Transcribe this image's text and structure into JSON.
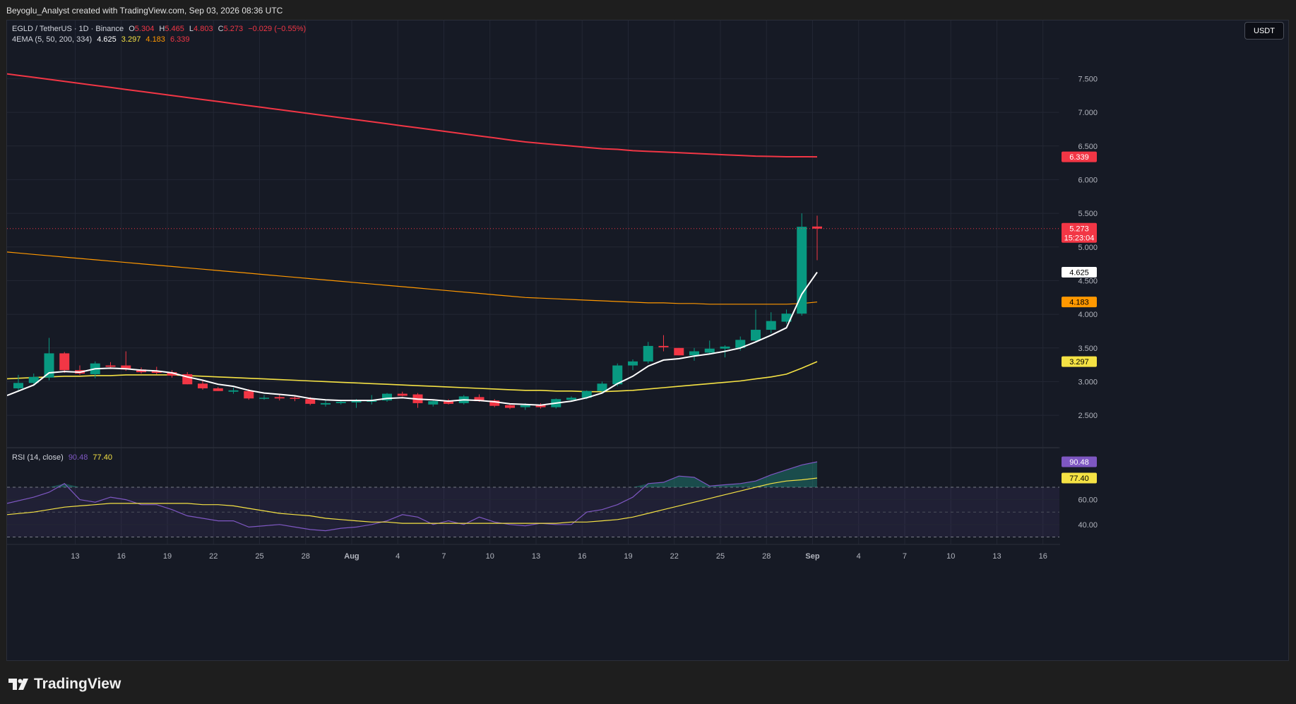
{
  "header": {
    "credit": "Beyoglu_Analyst created with TradingView.com, Sep 03, 2026 08:36 UTC"
  },
  "legend": {
    "symbol": "EGLD / TetherUS · 1D · Binance",
    "o_label": "O",
    "o_value": "5.304",
    "h_label": "H",
    "h_value": "5.465",
    "l_label": "L",
    "l_value": "4.803",
    "c_label": "C",
    "c_value": "5.273",
    "change": "−0.029 (−0.55%)",
    "ema_label": "4EMA (5, 50, 200, 334)",
    "ema5": "4.625",
    "ema50": "3.297",
    "ema200": "4.183",
    "ema334": "6.339",
    "rsi_label": "RSI (14, close)",
    "rsi_value": "90.48",
    "rsi_ma": "77.40"
  },
  "currency_button": "USDT",
  "branding": {
    "logo_text": "TradingView",
    "logo_icon": "tradingview-logo-icon"
  },
  "colors": {
    "up": "#089981",
    "down": "#f23645",
    "ema5": "#ffffff",
    "ema50": "#f5e244",
    "ema200": "#ff9800",
    "ema334": "#f23645",
    "rsi": "#7e57c2",
    "rsi_ma": "#f5e244"
  },
  "chart_data": [
    {
      "type": "candlestick",
      "title": "EGLD / TetherUS · 1D · Binance",
      "x_tick_labels": [
        "13",
        "16",
        "19",
        "22",
        "25",
        "28",
        "Aug",
        "4",
        "7",
        "10",
        "13",
        "16",
        "19",
        "22",
        "25",
        "28",
        "Sep",
        "4",
        "7",
        "10",
        "13",
        "16"
      ],
      "y_tick_labels": [
        "2.500",
        "3.000",
        "3.500",
        "4.000",
        "4.500",
        "5.000",
        "5.500",
        "6.000",
        "6.500",
        "7.000",
        "7.500"
      ],
      "ylim": [
        2.05,
        8.05
      ],
      "price_labels": {
        "ema334": "6.339",
        "last": "5.273",
        "countdown": "15:23:04",
        "ema5": "4.625",
        "ema200": "4.183",
        "ema50": "3.297"
      },
      "candles": [
        [
          2.9,
          3.1,
          2.85,
          2.98
        ],
        [
          2.98,
          3.12,
          2.95,
          3.07
        ],
        [
          3.06,
          3.65,
          3.02,
          3.42
        ],
        [
          3.42,
          3.44,
          3.13,
          3.17
        ],
        [
          3.17,
          3.24,
          3.1,
          3.12
        ],
        [
          3.11,
          3.3,
          3.05,
          3.27
        ],
        [
          3.24,
          3.29,
          3.2,
          3.22
        ],
        [
          3.24,
          3.45,
          3.16,
          3.18
        ],
        [
          3.18,
          3.21,
          3.12,
          3.14
        ],
        [
          3.16,
          3.22,
          3.11,
          3.13
        ],
        [
          3.14,
          3.17,
          3.06,
          3.09
        ],
        [
          3.11,
          3.14,
          2.96,
          2.96
        ],
        [
          2.97,
          3.02,
          2.88,
          2.9
        ],
        [
          2.9,
          2.92,
          2.86,
          2.86
        ],
        [
          2.85,
          2.91,
          2.82,
          2.87
        ],
        [
          2.86,
          2.89,
          2.73,
          2.75
        ],
        [
          2.75,
          2.8,
          2.73,
          2.76
        ],
        [
          2.77,
          2.81,
          2.72,
          2.75
        ],
        [
          2.76,
          2.79,
          2.71,
          2.75
        ],
        [
          2.74,
          2.77,
          2.65,
          2.67
        ],
        [
          2.66,
          2.72,
          2.63,
          2.68
        ],
        [
          2.68,
          2.72,
          2.66,
          2.7
        ],
        [
          2.69,
          2.74,
          2.61,
          2.72
        ],
        [
          2.7,
          2.8,
          2.66,
          2.72
        ],
        [
          2.72,
          2.83,
          2.7,
          2.82
        ],
        [
          2.82,
          2.85,
          2.78,
          2.79
        ],
        [
          2.81,
          2.83,
          2.61,
          2.68
        ],
        [
          2.66,
          2.73,
          2.63,
          2.71
        ],
        [
          2.71,
          2.74,
          2.66,
          2.67
        ],
        [
          2.68,
          2.8,
          2.66,
          2.78
        ],
        [
          2.77,
          2.81,
          2.7,
          2.71
        ],
        [
          2.72,
          2.74,
          2.62,
          2.64
        ],
        [
          2.65,
          2.67,
          2.59,
          2.61
        ],
        [
          2.62,
          2.68,
          2.58,
          2.65
        ],
        [
          2.65,
          2.68,
          2.6,
          2.62
        ],
        [
          2.62,
          2.75,
          2.6,
          2.74
        ],
        [
          2.73,
          2.78,
          2.71,
          2.76
        ],
        [
          2.76,
          2.87,
          2.74,
          2.86
        ],
        [
          2.86,
          3.0,
          2.84,
          2.97
        ],
        [
          2.96,
          3.27,
          2.93,
          3.24
        ],
        [
          3.24,
          3.33,
          3.17,
          3.3
        ],
        [
          3.3,
          3.59,
          3.27,
          3.53
        ],
        [
          3.53,
          3.69,
          3.45,
          3.51
        ],
        [
          3.5,
          3.5,
          3.39,
          3.39
        ],
        [
          3.39,
          3.5,
          3.31,
          3.45
        ],
        [
          3.43,
          3.61,
          3.41,
          3.49
        ],
        [
          3.49,
          3.54,
          3.36,
          3.52
        ],
        [
          3.5,
          3.67,
          3.46,
          3.62
        ],
        [
          3.61,
          4.07,
          3.58,
          3.77
        ],
        [
          3.77,
          4.03,
          3.72,
          3.9
        ],
        [
          3.89,
          4.07,
          3.86,
          4.01
        ],
        [
          4.01,
          5.5,
          3.98,
          5.3
        ],
        [
          5.304,
          5.465,
          4.803,
          5.273
        ]
      ],
      "ema5": [
        2.86,
        2.95,
        3.13,
        3.15,
        3.14,
        3.19,
        3.2,
        3.19,
        3.17,
        3.16,
        3.13,
        3.07,
        3.02,
        2.96,
        2.93,
        2.87,
        2.83,
        2.81,
        2.79,
        2.75,
        2.73,
        2.72,
        2.72,
        2.72,
        2.75,
        2.76,
        2.74,
        2.73,
        2.71,
        2.73,
        2.72,
        2.7,
        2.67,
        2.66,
        2.65,
        2.68,
        2.71,
        2.76,
        2.83,
        2.97,
        3.08,
        3.23,
        3.32,
        3.34,
        3.38,
        3.41,
        3.45,
        3.5,
        3.59,
        3.69,
        3.8,
        4.3,
        4.625
      ],
      "ema50": [
        3.05,
        3.06,
        3.07,
        3.08,
        3.08,
        3.09,
        3.09,
        3.1,
        3.1,
        3.1,
        3.1,
        3.09,
        3.08,
        3.07,
        3.06,
        3.05,
        3.04,
        3.03,
        3.02,
        3.01,
        3.0,
        2.99,
        2.98,
        2.97,
        2.96,
        2.95,
        2.94,
        2.93,
        2.92,
        2.91,
        2.9,
        2.89,
        2.88,
        2.87,
        2.87,
        2.86,
        2.86,
        2.85,
        2.85,
        2.86,
        2.87,
        2.89,
        2.91,
        2.93,
        2.95,
        2.97,
        2.99,
        3.01,
        3.04,
        3.07,
        3.11,
        3.2,
        3.297
      ],
      "ema200": [
        4.91,
        4.89,
        4.87,
        4.85,
        4.83,
        4.81,
        4.79,
        4.77,
        4.75,
        4.73,
        4.71,
        4.69,
        4.67,
        4.65,
        4.63,
        4.61,
        4.59,
        4.57,
        4.55,
        4.53,
        4.51,
        4.49,
        4.47,
        4.45,
        4.43,
        4.41,
        4.39,
        4.37,
        4.35,
        4.33,
        4.31,
        4.29,
        4.27,
        4.25,
        4.24,
        4.23,
        4.22,
        4.21,
        4.2,
        4.19,
        4.18,
        4.17,
        4.17,
        4.16,
        4.16,
        4.15,
        4.15,
        4.15,
        4.15,
        4.15,
        4.15,
        4.16,
        4.183
      ],
      "ema334": [
        7.55,
        7.52,
        7.49,
        7.46,
        7.43,
        7.4,
        7.37,
        7.34,
        7.31,
        7.28,
        7.25,
        7.22,
        7.19,
        7.16,
        7.13,
        7.1,
        7.07,
        7.04,
        7.01,
        6.98,
        6.95,
        6.92,
        6.89,
        6.86,
        6.83,
        6.8,
        6.77,
        6.74,
        6.71,
        6.68,
        6.65,
        6.62,
        6.59,
        6.56,
        6.54,
        6.52,
        6.5,
        6.48,
        6.46,
        6.45,
        6.43,
        6.42,
        6.41,
        6.4,
        6.39,
        6.38,
        6.37,
        6.36,
        6.35,
        6.345,
        6.34,
        6.34,
        6.339
      ]
    },
    {
      "type": "line",
      "title": "RSI (14, close)",
      "y_tick_labels": [
        "40.00",
        "60.00"
      ],
      "ylim": [
        24,
        99
      ],
      "bands": [
        30,
        50,
        70
      ],
      "price_labels": {
        "rsi": "90.48",
        "rsi_ma": "77.40"
      },
      "rsi": [
        57,
        62,
        66,
        73,
        60,
        58,
        62,
        60,
        56,
        56,
        52,
        47,
        45,
        43,
        43,
        38,
        39,
        40,
        38,
        36,
        35,
        37,
        38,
        40,
        43,
        48,
        46,
        40,
        43,
        40,
        46,
        42,
        40,
        39,
        41,
        40,
        40,
        50,
        52,
        56,
        62,
        73,
        74,
        79,
        78,
        71,
        72,
        73,
        75,
        80,
        84,
        88,
        90.48
      ],
      "rsi_ma": [
        48,
        50,
        52,
        54,
        55,
        56,
        57,
        57,
        57,
        57,
        57,
        57,
        56,
        56,
        55,
        53,
        51,
        49,
        48,
        47,
        45,
        44,
        43,
        42,
        42,
        41,
        41,
        41,
        41,
        41,
        41,
        41,
        41,
        41,
        41,
        41,
        42,
        42,
        43,
        44,
        46,
        49,
        52,
        55,
        58,
        61,
        64,
        67,
        70,
        73,
        75,
        76,
        77.4
      ]
    }
  ]
}
